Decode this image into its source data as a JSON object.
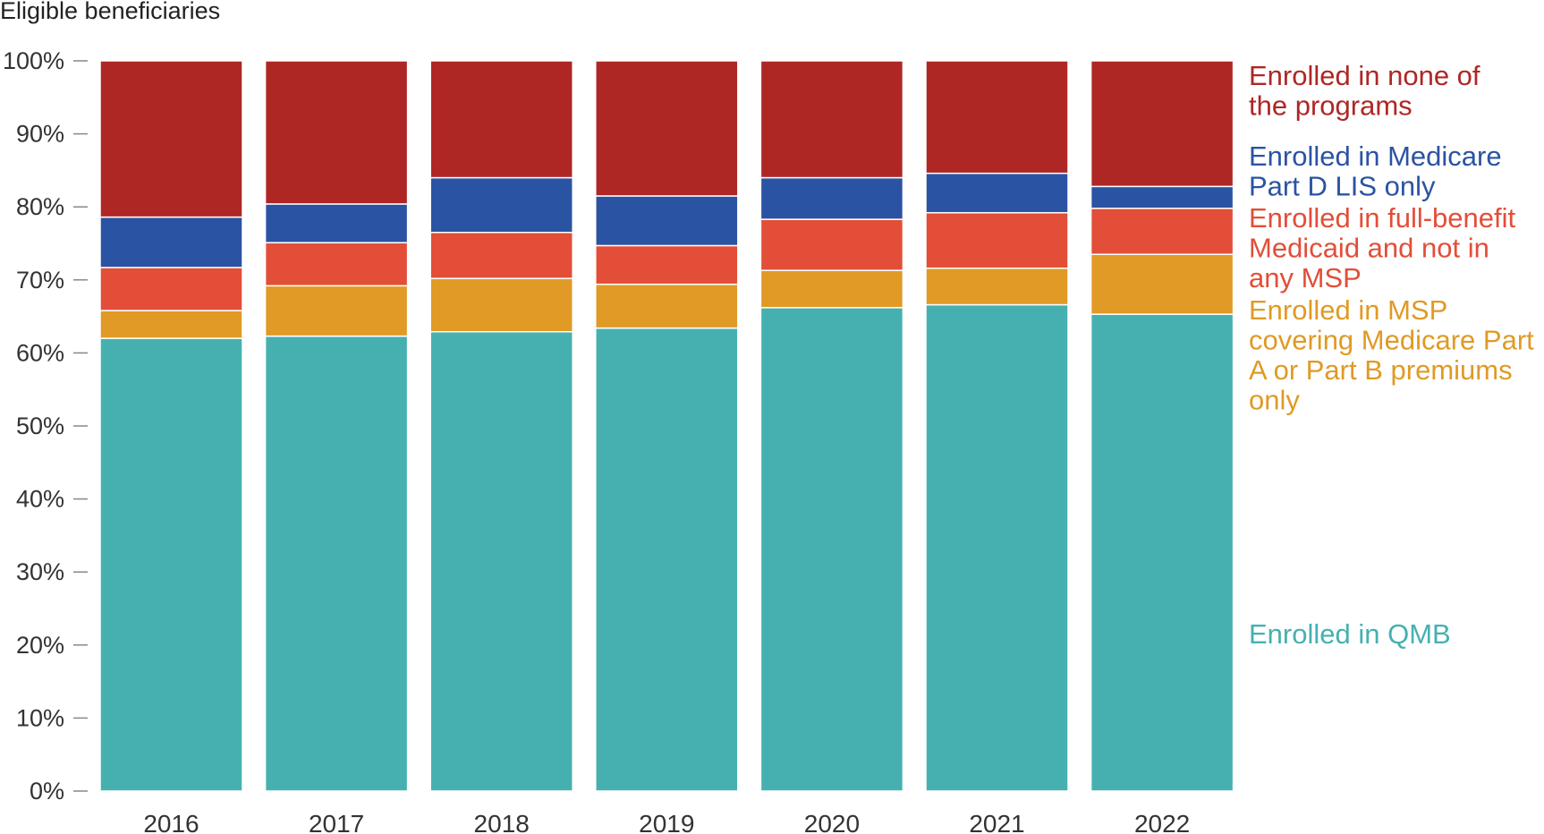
{
  "chart_data": {
    "type": "bar",
    "stacked": true,
    "ylabel": "Eligible beneficiaries",
    "xlabel": "",
    "ylim": [
      0,
      100
    ],
    "yticks": [
      "0%",
      "10%",
      "20%",
      "30%",
      "40%",
      "50%",
      "60%",
      "70%",
      "80%",
      "90%",
      "100%"
    ],
    "categories": [
      "2016",
      "2017",
      "2018",
      "2019",
      "2020",
      "2021",
      "2022"
    ],
    "series": [
      {
        "name": "Enrolled in QMB",
        "label_lines": [
          "Enrolled in QMB"
        ],
        "color": "#46b0b0",
        "values": [
          62.0,
          62.3,
          62.9,
          63.4,
          66.2,
          66.6,
          65.3
        ]
      },
      {
        "name": "Enrolled in MSP covering Medicare Part A or Part B premiums only",
        "label_lines": [
          "Enrolled in MSP",
          "covering Medicare Part",
          "A or Part B premiums",
          "only"
        ],
        "color": "#e09a25",
        "values": [
          3.8,
          6.9,
          7.3,
          6.0,
          5.1,
          5.0,
          8.2
        ]
      },
      {
        "name": "Enrolled in full-benefit Medicaid and not in any MSP",
        "label_lines": [
          "Enrolled in full-benefit",
          "Medicaid and not in",
          "any MSP"
        ],
        "color": "#e24e38",
        "values": [
          5.9,
          5.9,
          6.3,
          5.3,
          7.0,
          7.6,
          6.3
        ]
      },
      {
        "name": "Enrolled in Medicare Part D LIS only",
        "label_lines": [
          "Enrolled in Medicare",
          "Part D LIS only"
        ],
        "color": "#2b53a3",
        "values": [
          6.9,
          5.3,
          7.5,
          6.8,
          5.7,
          5.4,
          3.0
        ]
      },
      {
        "name": "Enrolled in none of the programs",
        "label_lines": [
          "Enrolled in none of",
          "the programs"
        ],
        "color": "#ae2725",
        "values": [
          21.4,
          19.6,
          16.0,
          18.5,
          16.0,
          15.4,
          17.2
        ]
      }
    ]
  }
}
